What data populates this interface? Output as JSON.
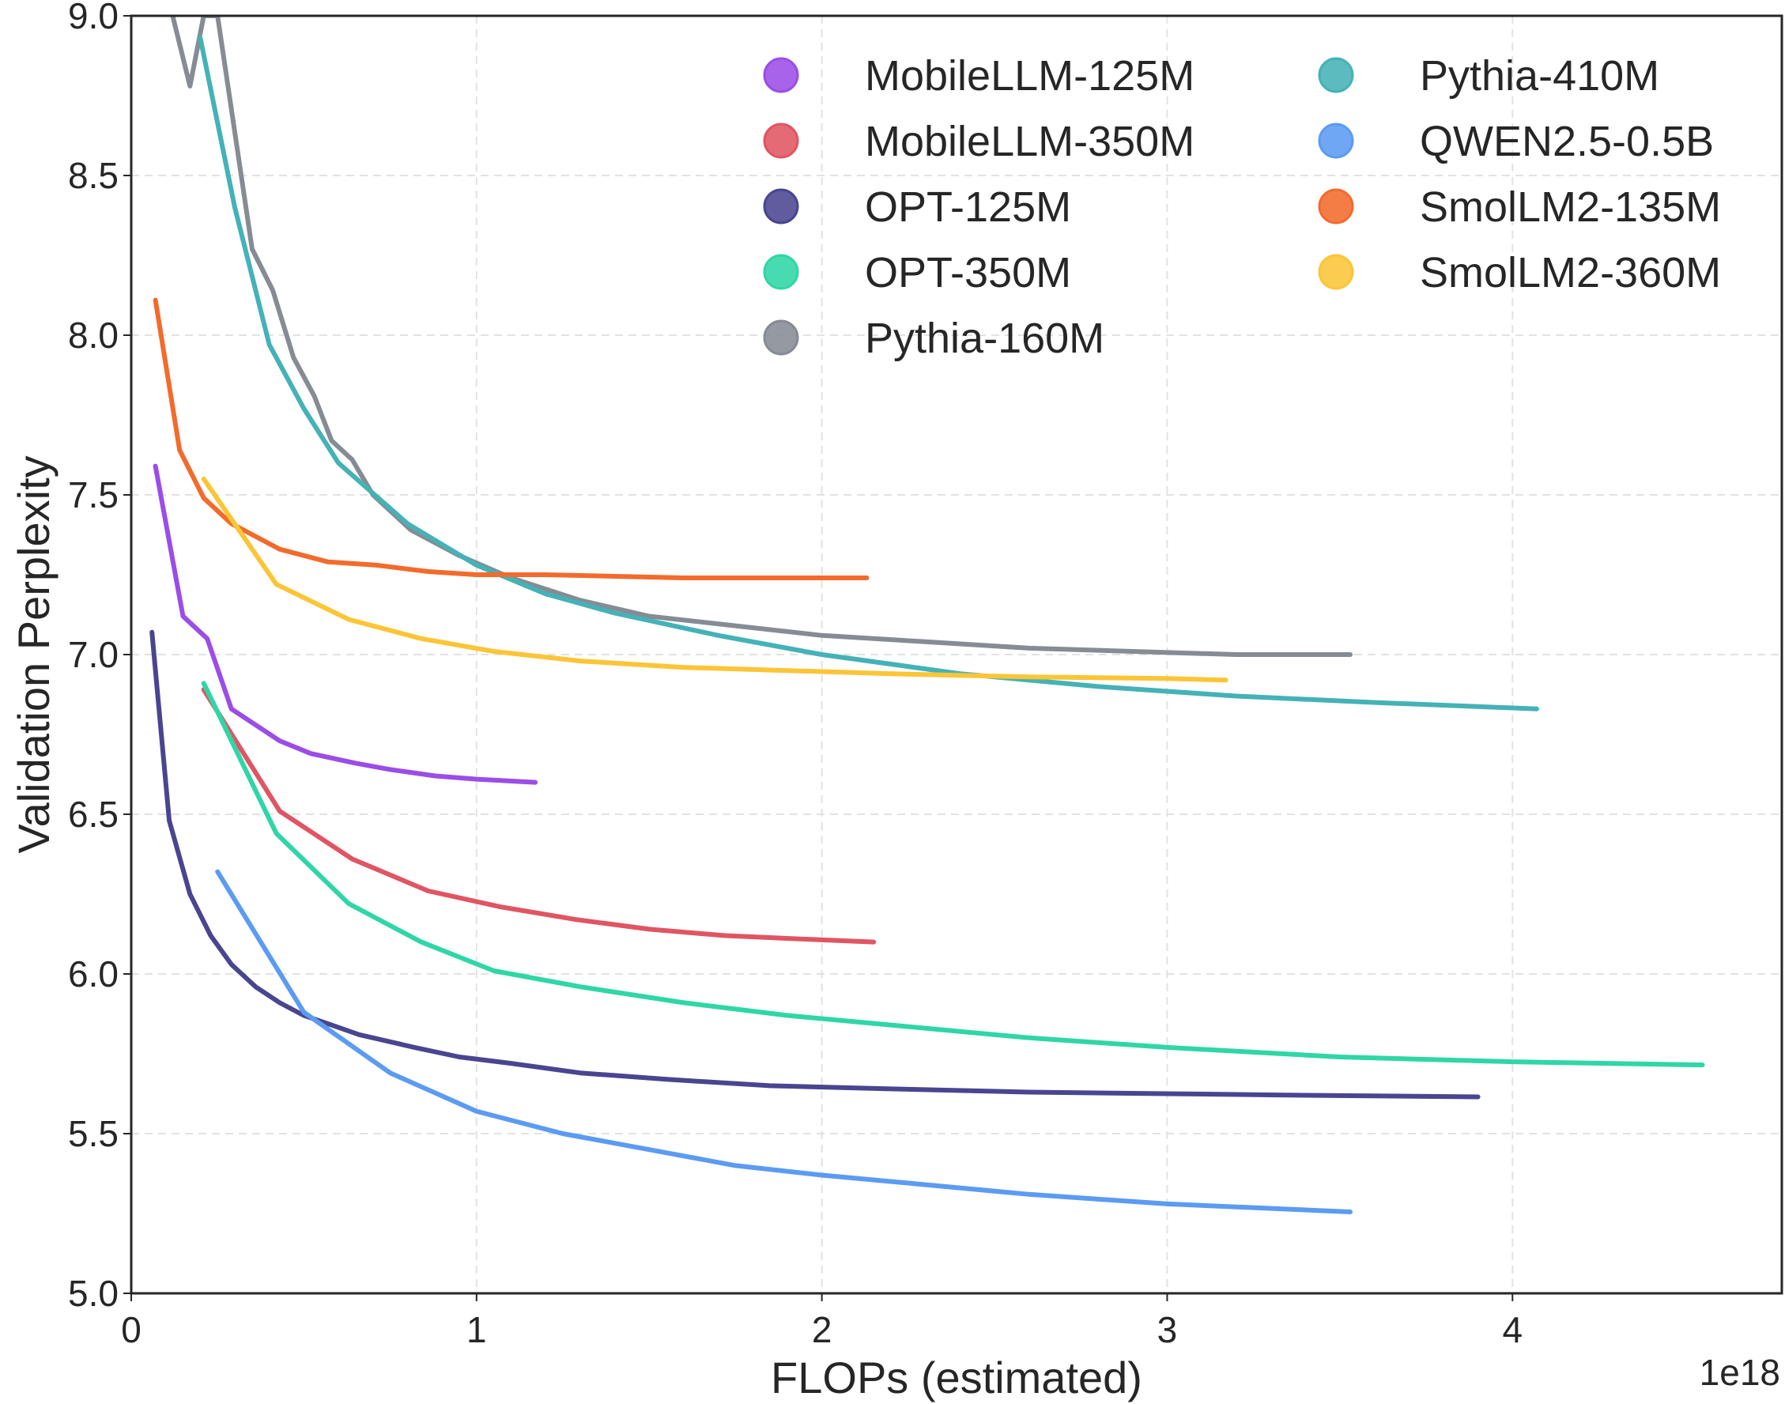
{
  "chart_data": {
    "type": "line",
    "title": "",
    "xlabel": "FLOPs (estimated)",
    "ylabel": "Validation Perplexity",
    "x_offset_label": "1e18",
    "xlim": [
      0,
      4.78
    ],
    "ylim": [
      5.0,
      9.0
    ],
    "xticks": [
      0,
      1,
      2,
      3,
      4
    ],
    "xtick_labels": [
      "0",
      "1",
      "2",
      "3",
      "4"
    ],
    "yticks": [
      5.0,
      5.5,
      6.0,
      6.5,
      7.0,
      7.5,
      8.0,
      8.5,
      9.0
    ],
    "ytick_labels": [
      "5.0",
      "5.5",
      "6.0",
      "6.5",
      "7.0",
      "7.5",
      "8.0",
      "8.5",
      "9.0"
    ],
    "grid": true,
    "legend_position": "top-right",
    "legend_columns": 2,
    "series": [
      {
        "name": "MobileLLM-125M",
        "color": "#9b4de6",
        "x": [
          0.07,
          0.15,
          0.22,
          0.29,
          0.43,
          0.52,
          0.65,
          0.75,
          0.88,
          1.0,
          1.17
        ],
        "y": [
          7.59,
          7.12,
          7.05,
          6.83,
          6.73,
          6.69,
          6.66,
          6.64,
          6.62,
          6.61,
          6.6
        ]
      },
      {
        "name": "MobileLLM-350M",
        "color": "#e05563",
        "x": [
          0.21,
          0.43,
          0.64,
          0.86,
          1.07,
          1.29,
          1.5,
          1.72,
          1.93,
          2.15
        ],
        "y": [
          6.89,
          6.51,
          6.36,
          6.26,
          6.21,
          6.17,
          6.14,
          6.12,
          6.11,
          6.1
        ]
      },
      {
        "name": "OPT-125M",
        "color": "#4a4590",
        "x": [
          0.06,
          0.11,
          0.17,
          0.23,
          0.29,
          0.36,
          0.43,
          0.5,
          0.58,
          0.66,
          0.74,
          0.82,
          0.95,
          1.1,
          1.3,
          1.55,
          1.85,
          2.2,
          2.6,
          3.0,
          3.4,
          3.9
        ],
        "y": [
          7.07,
          6.48,
          6.25,
          6.12,
          6.03,
          5.96,
          5.91,
          5.87,
          5.84,
          5.81,
          5.79,
          5.77,
          5.74,
          5.72,
          5.69,
          5.67,
          5.65,
          5.64,
          5.63,
          5.625,
          5.62,
          5.615
        ]
      },
      {
        "name": "OPT-350M",
        "color": "#2fd6a6",
        "x": [
          0.21,
          0.42,
          0.63,
          0.84,
          1.05,
          1.3,
          1.6,
          1.9,
          2.2,
          2.6,
          3.0,
          3.5,
          4.0,
          4.55
        ],
        "y": [
          6.91,
          6.44,
          6.22,
          6.1,
          6.01,
          5.96,
          5.91,
          5.87,
          5.84,
          5.8,
          5.77,
          5.74,
          5.725,
          5.715
        ]
      },
      {
        "name": "Pythia-160M",
        "color": "#868b94",
        "x": [
          0.12,
          0.17,
          0.21,
          0.25,
          0.35,
          0.41,
          0.47,
          0.53,
          0.58,
          0.64,
          0.7,
          0.81,
          0.95,
          1.1,
          1.3,
          1.5,
          1.75,
          2.0,
          2.3,
          2.6,
          2.9,
          3.2,
          3.53
        ],
        "y": [
          9.0,
          8.78,
          9.0,
          9.0,
          8.27,
          8.14,
          7.93,
          7.81,
          7.67,
          7.61,
          7.5,
          7.39,
          7.31,
          7.24,
          7.17,
          7.12,
          7.09,
          7.06,
          7.04,
          7.02,
          7.01,
          7.0,
          7.0
        ]
      },
      {
        "name": "Pythia-410M",
        "color": "#44b2b6",
        "x": [
          0.2,
          0.3,
          0.4,
          0.5,
          0.6,
          0.8,
          1.0,
          1.2,
          1.4,
          1.7,
          2.0,
          2.4,
          2.8,
          3.2,
          3.6,
          4.07
        ],
        "y": [
          8.93,
          8.4,
          7.97,
          7.77,
          7.6,
          7.41,
          7.28,
          7.19,
          7.13,
          7.06,
          7.0,
          6.94,
          6.9,
          6.87,
          6.85,
          6.83
        ]
      },
      {
        "name": "QWEN2.5-0.5B",
        "color": "#5b9bf2",
        "x": [
          0.25,
          0.5,
          0.75,
          1.0,
          1.25,
          1.5,
          1.75,
          2.0,
          2.3,
          2.6,
          3.0,
          3.53
        ],
        "y": [
          6.32,
          5.88,
          5.69,
          5.57,
          5.5,
          5.45,
          5.4,
          5.37,
          5.34,
          5.31,
          5.28,
          5.255
        ]
      },
      {
        "name": "SmolLM2-135M",
        "color": "#f26b2c",
        "x": [
          0.07,
          0.14,
          0.21,
          0.29,
          0.43,
          0.57,
          0.71,
          0.86,
          1.0,
          1.2,
          1.4,
          1.6,
          1.8,
          2.0,
          2.13
        ],
        "y": [
          8.11,
          7.64,
          7.49,
          7.41,
          7.33,
          7.29,
          7.28,
          7.26,
          7.25,
          7.25,
          7.245,
          7.24,
          7.24,
          7.24,
          7.24
        ]
      },
      {
        "name": "SmolLM2-360M",
        "color": "#fbc537",
        "x": [
          0.21,
          0.42,
          0.63,
          0.84,
          1.05,
          1.3,
          1.6,
          1.9,
          2.2,
          2.6,
          3.0,
          3.17
        ],
        "y": [
          7.55,
          7.22,
          7.11,
          7.05,
          7.01,
          6.98,
          6.96,
          6.95,
          6.94,
          6.93,
          6.925,
          6.92
        ]
      }
    ]
  }
}
